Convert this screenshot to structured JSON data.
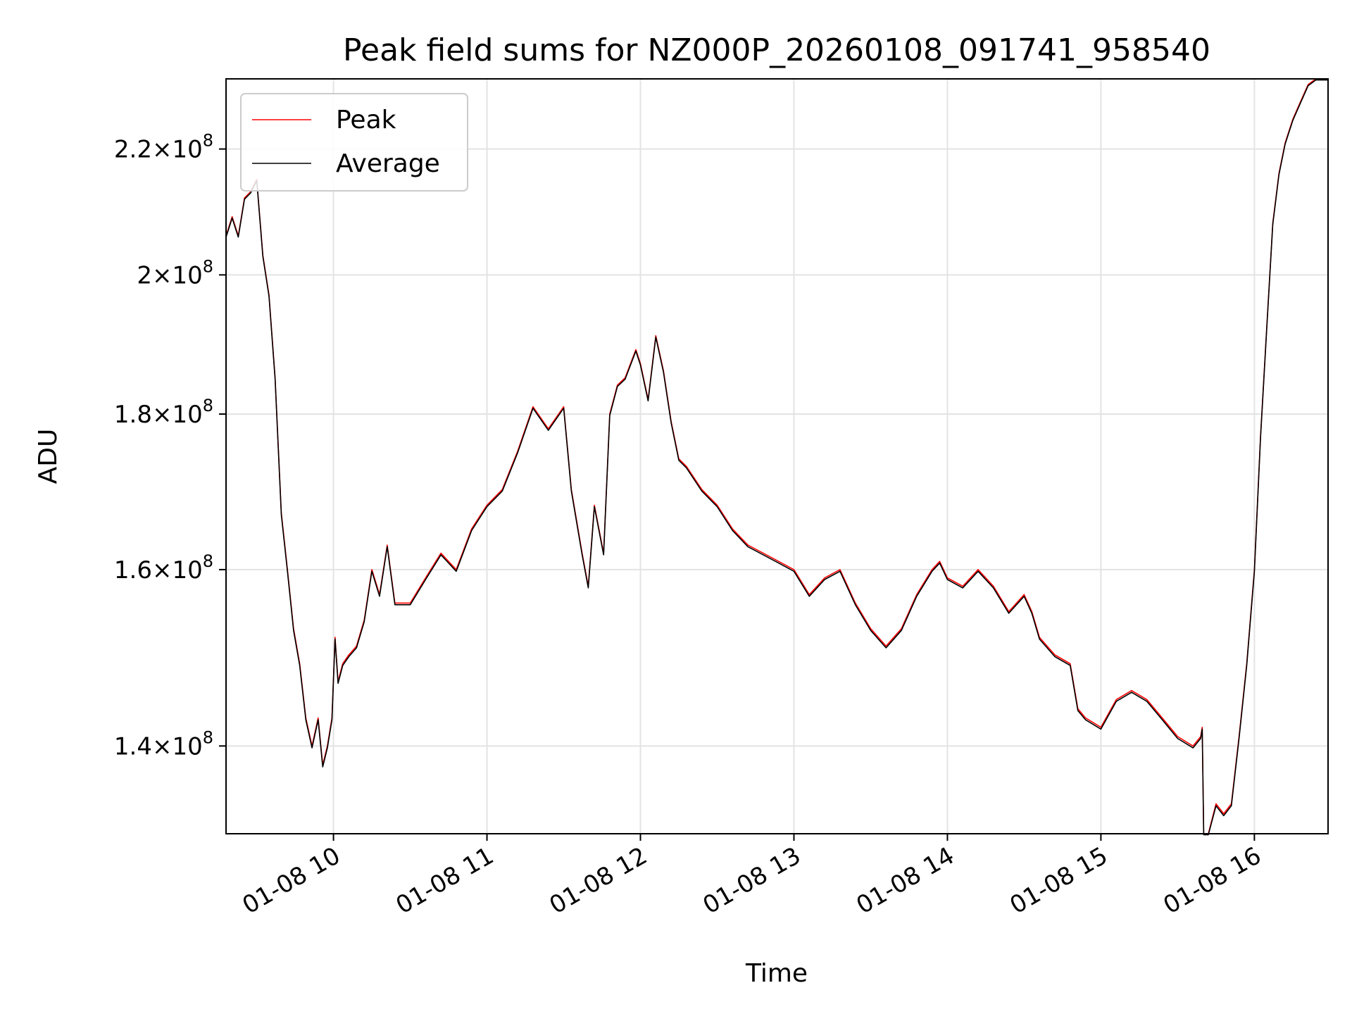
{
  "chart_data": {
    "type": "line",
    "title": "Peak field sums for NZ000P_20260108_091741_958540",
    "xlabel": "Time",
    "ylabel": "ADU",
    "y_scale": "log",
    "grid": true,
    "legend_location": "top-left",
    "x_unit": "hours (01-08)",
    "xlim": [
      9.3,
      16.48
    ],
    "ylim": [
      131000000,
      232000000
    ],
    "x_ticks": [
      {
        "value": 10,
        "label": "01-08 10"
      },
      {
        "value": 11,
        "label": "01-08 11"
      },
      {
        "value": 12,
        "label": "01-08 12"
      },
      {
        "value": 13,
        "label": "01-08 13"
      },
      {
        "value": 14,
        "label": "01-08 14"
      },
      {
        "value": 15,
        "label": "01-08 15"
      },
      {
        "value": 16,
        "label": "01-08 16"
      }
    ],
    "y_ticks": [
      {
        "value": 140000000,
        "mantissa": "1.4",
        "exp": "8"
      },
      {
        "value": 160000000,
        "mantissa": "1.6",
        "exp": "8"
      },
      {
        "value": 180000000,
        "mantissa": "1.8",
        "exp": "8"
      },
      {
        "value": 200000000,
        "mantissa": "2",
        "exp": "8"
      },
      {
        "value": 220000000,
        "mantissa": "2.2",
        "exp": "8"
      }
    ],
    "legend": [
      {
        "name": "Peak",
        "color": "#ff0000"
      },
      {
        "name": "Average",
        "color": "#000000"
      }
    ],
    "series": [
      {
        "name": "Peak",
        "color": "#ff0000",
        "x": [
          9.3,
          9.34,
          9.38,
          9.42,
          9.46,
          9.5,
          9.54,
          9.58,
          9.62,
          9.66,
          9.7,
          9.74,
          9.78,
          9.82,
          9.86,
          9.9,
          9.93,
          9.96,
          9.99,
          10.01,
          10.03,
          10.06,
          10.1,
          10.15,
          10.2,
          10.25,
          10.3,
          10.35,
          10.4,
          10.5,
          10.6,
          10.7,
          10.8,
          10.9,
          11.0,
          11.1,
          11.2,
          11.3,
          11.4,
          11.5,
          11.55,
          11.62,
          11.66,
          11.7,
          11.76,
          11.8,
          11.85,
          11.9,
          11.97,
          12.0,
          12.05,
          12.1,
          12.15,
          12.2,
          12.25,
          12.3,
          12.4,
          12.5,
          12.6,
          12.7,
          12.8,
          12.9,
          13.0,
          13.1,
          13.2,
          13.3,
          13.4,
          13.5,
          13.6,
          13.7,
          13.8,
          13.9,
          13.95,
          14.0,
          14.1,
          14.2,
          14.3,
          14.4,
          14.5,
          14.55,
          14.6,
          14.7,
          14.8,
          14.85,
          14.9,
          15.0,
          15.1,
          15.2,
          15.3,
          15.4,
          15.5,
          15.6,
          15.65,
          15.66,
          15.67,
          15.7,
          15.75,
          15.8,
          15.85,
          15.9,
          15.95,
          16.0,
          16.04,
          16.08,
          16.12,
          16.16,
          16.2,
          16.25,
          16.3,
          16.35,
          16.4,
          16.48
        ],
        "values": [
          206000000,
          209000000,
          206000000,
          212000000,
          213000000,
          215000000,
          203000000,
          197000000,
          185000000,
          167000000,
          160000000,
          153000000,
          149000000,
          143000000,
          140000000,
          143000000,
          138000000,
          140000000,
          143000000,
          152000000,
          147000000,
          149000000,
          150000000,
          151000000,
          154000000,
          160000000,
          157000000,
          163000000,
          156000000,
          156000000,
          159000000,
          162000000,
          160000000,
          165000000,
          168000000,
          170000000,
          175000000,
          181000000,
          178000000,
          181000000,
          170000000,
          162000000,
          158000000,
          168000000,
          162000000,
          180000000,
          184000000,
          185000000,
          189000000,
          187000000,
          182000000,
          191000000,
          186000000,
          179000000,
          174000000,
          173000000,
          170000000,
          168000000,
          165000000,
          163000000,
          162000000,
          161000000,
          160000000,
          157000000,
          159000000,
          160000000,
          156000000,
          153000000,
          151000000,
          153000000,
          157000000,
          160000000,
          161000000,
          159000000,
          158000000,
          160000000,
          158000000,
          155000000,
          157000000,
          155000000,
          152000000,
          150000000,
          149000000,
          144000000,
          143000000,
          142000000,
          145000000,
          146000000,
          145000000,
          143000000,
          141000000,
          140000000,
          141000000,
          142000000,
          131000000,
          131000000,
          134000000,
          133000000,
          134000000,
          141000000,
          149000000,
          160000000,
          177000000,
          192000000,
          208000000,
          216000000,
          221000000,
          225000000,
          228000000,
          231000000,
          232000000,
          232000000
        ]
      },
      {
        "name": "Average",
        "color": "#000000",
        "x": [
          9.3,
          9.34,
          9.38,
          9.42,
          9.46,
          9.5,
          9.54,
          9.58,
          9.62,
          9.66,
          9.7,
          9.74,
          9.78,
          9.82,
          9.86,
          9.9,
          9.93,
          9.96,
          9.99,
          10.01,
          10.03,
          10.06,
          10.1,
          10.15,
          10.2,
          10.25,
          10.3,
          10.35,
          10.4,
          10.5,
          10.6,
          10.7,
          10.8,
          10.9,
          11.0,
          11.1,
          11.2,
          11.3,
          11.4,
          11.5,
          11.55,
          11.62,
          11.66,
          11.7,
          11.76,
          11.8,
          11.85,
          11.9,
          11.97,
          12.0,
          12.05,
          12.1,
          12.15,
          12.2,
          12.25,
          12.3,
          12.4,
          12.5,
          12.6,
          12.7,
          12.8,
          12.9,
          13.0,
          13.1,
          13.2,
          13.3,
          13.4,
          13.5,
          13.6,
          13.7,
          13.8,
          13.9,
          13.95,
          14.0,
          14.1,
          14.2,
          14.3,
          14.4,
          14.5,
          14.55,
          14.6,
          14.7,
          14.8,
          14.85,
          14.9,
          15.0,
          15.1,
          15.2,
          15.3,
          15.4,
          15.5,
          15.6,
          15.65,
          15.66,
          15.67,
          15.7,
          15.75,
          15.8,
          15.85,
          15.9,
          15.95,
          16.0,
          16.04,
          16.08,
          16.12,
          16.16,
          16.2,
          16.25,
          16.3,
          16.35,
          16.4,
          16.48
        ],
        "values": [
          205800000,
          208800000,
          205800000,
          211800000,
          212800000,
          214800000,
          202800000,
          196800000,
          184800000,
          166800000,
          159800000,
          152800000,
          148800000,
          142800000,
          139800000,
          142800000,
          137800000,
          139800000,
          142800000,
          151800000,
          146800000,
          148800000,
          149800000,
          150800000,
          153800000,
          159800000,
          156800000,
          162800000,
          155800000,
          155800000,
          158800000,
          161800000,
          159800000,
          164800000,
          167800000,
          169800000,
          174800000,
          180800000,
          177800000,
          180800000,
          169800000,
          161800000,
          157800000,
          167800000,
          161800000,
          179800000,
          183800000,
          184800000,
          188800000,
          186800000,
          181800000,
          190800000,
          185800000,
          178800000,
          173800000,
          172800000,
          169800000,
          167800000,
          164800000,
          162800000,
          161800000,
          160800000,
          159800000,
          156800000,
          158800000,
          159800000,
          155800000,
          152800000,
          150800000,
          152800000,
          156800000,
          159800000,
          160800000,
          158800000,
          157800000,
          159800000,
          157800000,
          154800000,
          156800000,
          154800000,
          151800000,
          149800000,
          148800000,
          143800000,
          142800000,
          141800000,
          144800000,
          145800000,
          144800000,
          142800000,
          140800000,
          139800000,
          140800000,
          141800000,
          130900000,
          130900000,
          133800000,
          132800000,
          133800000,
          140800000,
          148800000,
          159800000,
          176800000,
          191800000,
          207800000,
          215800000,
          220800000,
          224800000,
          227800000,
          230800000,
          231800000,
          231800000
        ]
      }
    ]
  }
}
